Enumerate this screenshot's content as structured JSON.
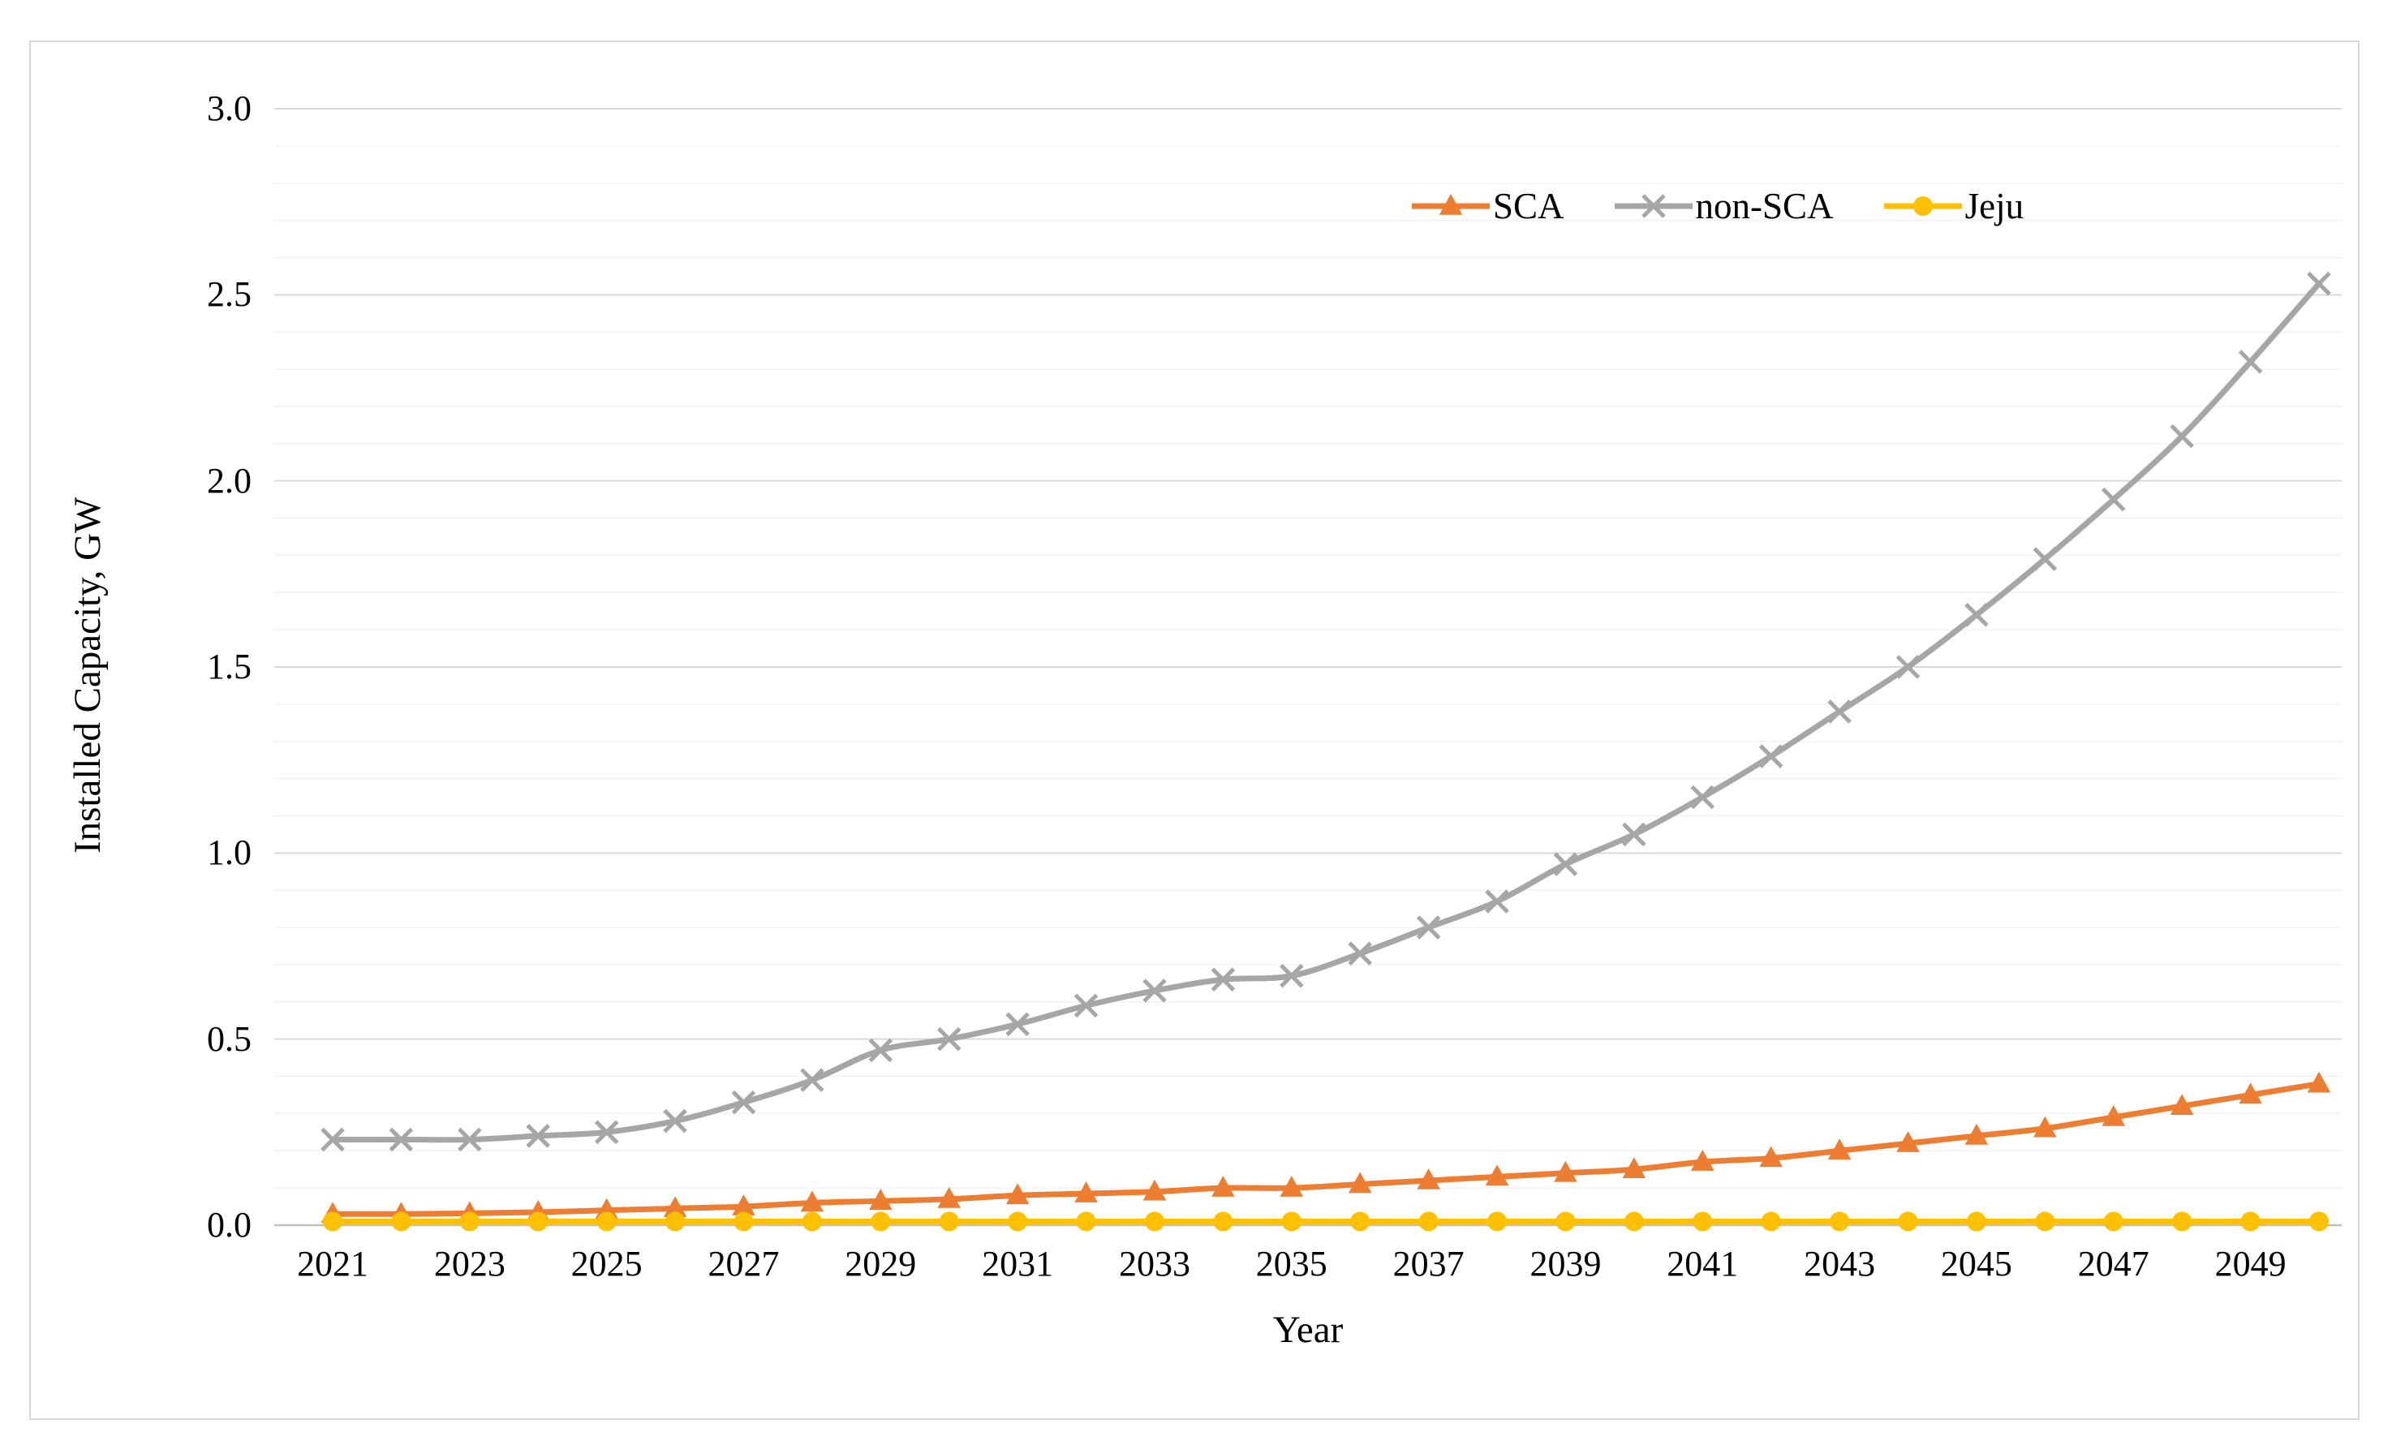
{
  "chart_data": {
    "type": "line",
    "title": "",
    "xlabel": "Year",
    "ylabel": "Installed Capacity, GW",
    "x": [
      2021,
      2022,
      2023,
      2024,
      2025,
      2026,
      2027,
      2028,
      2029,
      2030,
      2031,
      2032,
      2033,
      2034,
      2035,
      2036,
      2037,
      2038,
      2039,
      2040,
      2041,
      2042,
      2043,
      2044,
      2045,
      2046,
      2047,
      2048,
      2049,
      2050
    ],
    "x_tick_labels": [
      "2021",
      "2023",
      "2025",
      "2027",
      "2029",
      "2031",
      "2033",
      "2035",
      "2037",
      "2039",
      "2041",
      "2043",
      "2045",
      "2047",
      "2049"
    ],
    "ylim": [
      0,
      3.0
    ],
    "y_ticks": [
      0.0,
      0.5,
      1.0,
      1.5,
      2.0,
      2.5,
      3.0
    ],
    "y_tick_labels": [
      "0.0",
      "0.5",
      "1.0",
      "1.5",
      "2.0",
      "2.5",
      "3.0"
    ],
    "grid": "horizontal, minor every 0.1, major every 0.5",
    "legend_position": "top-right-inside",
    "colors": {
      "major_gridline": "#d9d9d9",
      "minor_gridline": "#f2f2f2",
      "axis_line": "#bfbfbf"
    },
    "series": [
      {
        "name": "SCA",
        "color": "#ED7D31",
        "marker": "triangle",
        "values": [
          0.03,
          0.03,
          0.032,
          0.035,
          0.04,
          0.045,
          0.05,
          0.06,
          0.065,
          0.07,
          0.08,
          0.085,
          0.09,
          0.1,
          0.1,
          0.11,
          0.12,
          0.13,
          0.14,
          0.15,
          0.17,
          0.18,
          0.2,
          0.22,
          0.24,
          0.26,
          0.29,
          0.32,
          0.35,
          0.38
        ]
      },
      {
        "name": "non-SCA",
        "color": "#A6A6A6",
        "marker": "x",
        "values": [
          0.23,
          0.23,
          0.23,
          0.24,
          0.25,
          0.28,
          0.33,
          0.39,
          0.47,
          0.5,
          0.54,
          0.59,
          0.63,
          0.66,
          0.67,
          0.73,
          0.8,
          0.87,
          0.97,
          1.05,
          1.15,
          1.26,
          1.38,
          1.5,
          1.64,
          1.79,
          1.95,
          2.12,
          2.32,
          2.53
        ]
      },
      {
        "name": "Jeju",
        "color": "#FFC000",
        "marker": "circle",
        "values": [
          0.01,
          0.01,
          0.01,
          0.01,
          0.01,
          0.01,
          0.01,
          0.01,
          0.01,
          0.01,
          0.01,
          0.01,
          0.01,
          0.01,
          0.01,
          0.01,
          0.01,
          0.01,
          0.01,
          0.01,
          0.01,
          0.01,
          0.01,
          0.01,
          0.01,
          0.01,
          0.01,
          0.01,
          0.01,
          0.01
        ]
      }
    ]
  }
}
